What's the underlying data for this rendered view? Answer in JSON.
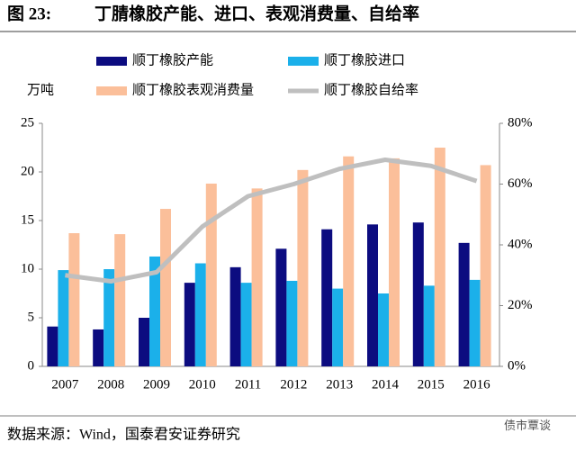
{
  "chart_data": {
    "type": "bar",
    "figure_label": "图 23:",
    "title": "丁腈橡胶产能、进口、表观消费量、自给率",
    "y_label": "万吨",
    "source": "数据来源：Wind，国泰君安证券研究",
    "watermark": "债市覃谈",
    "categories": [
      "2007",
      "2008",
      "2009",
      "2010",
      "2011",
      "2012",
      "2013",
      "2014",
      "2015",
      "2016"
    ],
    "series": [
      {
        "name": "顺丁橡胶产能",
        "color": "#0c0c80",
        "values": [
          4.1,
          3.8,
          5.0,
          8.6,
          10.2,
          12.1,
          14.1,
          14.6,
          14.8,
          12.7
        ]
      },
      {
        "name": "顺丁橡胶进口",
        "color": "#1bb0ea",
        "values": [
          9.9,
          10.0,
          11.3,
          10.6,
          8.6,
          8.8,
          8.0,
          7.5,
          8.3,
          8.9
        ]
      },
      {
        "name": "顺丁橡胶表观消费量",
        "color": "#fbbf9a",
        "values": [
          13.7,
          13.6,
          16.2,
          18.8,
          18.3,
          20.2,
          21.6,
          21.4,
          22.5,
          20.7
        ]
      },
      {
        "name": "顺丁橡胶自给率",
        "color": "#bfbfbf",
        "type": "line",
        "axis": "y2",
        "values": [
          30,
          28,
          31,
          46,
          56,
          60,
          65,
          68,
          66,
          61
        ]
      }
    ],
    "ylim": [
      0,
      25
    ],
    "yticks": [
      0,
      5,
      10,
      15,
      20,
      25
    ],
    "y2lim": [
      0,
      80
    ],
    "y2ticks": [
      {
        "value": 0,
        "label": "0%"
      },
      {
        "value": 20,
        "label": "20%"
      },
      {
        "value": 40,
        "label": "40%"
      },
      {
        "value": 60,
        "label": "60%"
      },
      {
        "value": 80,
        "label": "80%"
      }
    ],
    "grid": false
  }
}
